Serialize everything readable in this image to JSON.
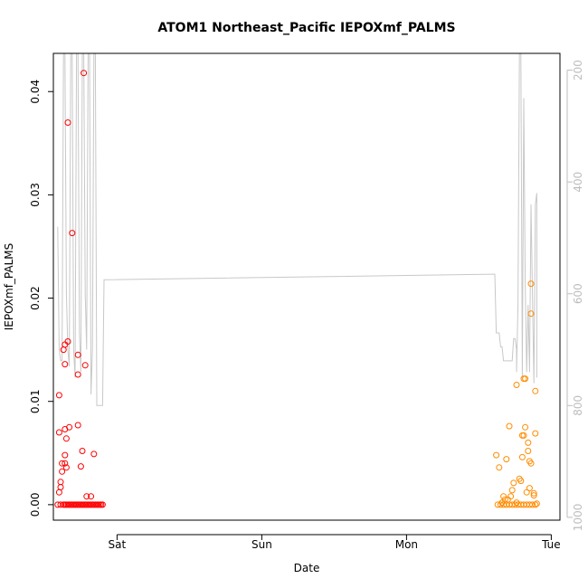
{
  "chart_data": {
    "type": "scatter",
    "title": "ATOM1 Northeast_Pacific IEPOXmf_PALMS",
    "xlabel": "Date",
    "ylabel": "IEPOXmf_PALMS",
    "x_ticks": [
      {
        "label": "Sat",
        "value": 1.0
      },
      {
        "label": "Sun",
        "value": 2.0
      },
      {
        "label": "Mon",
        "value": 3.0
      },
      {
        "label": "Tue",
        "value": 4.0
      }
    ],
    "xlim": [
      0.56,
      4.06
    ],
    "ylim": [
      -0.0015,
      0.0437
    ],
    "y_ticks": [
      0.0,
      0.01,
      0.02,
      0.03,
      0.04
    ],
    "y_tick_labels": [
      "0.00",
      "0.01",
      "0.02",
      "0.03",
      "0.04"
    ],
    "y2_ticks": [
      200,
      400,
      600,
      800,
      1000
    ],
    "y2_tick_labels": [
      "200",
      "400",
      "600",
      "800",
      "1000"
    ],
    "y2_range": [
      1005,
      170
    ],
    "colors": {
      "flight1": "#ff0000",
      "flight2": "#ff8c00",
      "pressure": "#c8c8c8"
    },
    "series": [
      {
        "points": [
          [
            0.6,
            0.0106
          ],
          [
            0.6,
            0.007
          ],
          [
            0.6,
            0.0012
          ],
          [
            0.61,
            0.0017
          ],
          [
            0.61,
            0.0022
          ],
          [
            0.62,
            0.0032
          ],
          [
            0.62,
            0.004
          ],
          [
            0.63,
            0.015
          ],
          [
            0.64,
            0.0155
          ],
          [
            0.64,
            0.0136
          ],
          [
            0.64,
            0.0073
          ],
          [
            0.64,
            0.0048
          ],
          [
            0.64,
            0.004
          ],
          [
            0.65,
            0.0064
          ],
          [
            0.65,
            0.0036
          ],
          [
            0.66,
            0.037
          ],
          [
            0.66,
            0.0158
          ],
          [
            0.67,
            0.0075
          ],
          [
            0.69,
            0.0263
          ],
          [
            0.73,
            0.0145
          ],
          [
            0.73,
            0.0126
          ],
          [
            0.73,
            0.0077
          ],
          [
            0.75,
            0.0037
          ],
          [
            0.76,
            0.0052
          ],
          [
            0.77,
            0.0418
          ],
          [
            0.78,
            0.0135
          ],
          [
            0.79,
            0.0008
          ],
          [
            0.82,
            0.0008
          ],
          [
            0.84,
            0.0049
          ],
          [
            0.59,
            0.0
          ],
          [
            0.61,
            0.0
          ],
          [
            0.63,
            0.0
          ],
          [
            0.64,
            0.0
          ],
          [
            0.65,
            0.0
          ],
          [
            0.66,
            0.0
          ],
          [
            0.67,
            0.0
          ],
          [
            0.68,
            0.0
          ],
          [
            0.69,
            0.0
          ],
          [
            0.7,
            0.0
          ],
          [
            0.71,
            0.0
          ],
          [
            0.72,
            0.0
          ],
          [
            0.73,
            0.0
          ],
          [
            0.74,
            0.0
          ],
          [
            0.75,
            0.0
          ],
          [
            0.76,
            0.0
          ],
          [
            0.77,
            0.0
          ],
          [
            0.78,
            0.0
          ],
          [
            0.79,
            0.0
          ],
          [
            0.8,
            0.0
          ],
          [
            0.81,
            0.0
          ],
          [
            0.82,
            0.0
          ],
          [
            0.83,
            0.0
          ],
          [
            0.84,
            0.0
          ],
          [
            0.85,
            0.0
          ],
          [
            0.86,
            0.0
          ],
          [
            0.87,
            0.0
          ],
          [
            0.88,
            0.0
          ],
          [
            0.89,
            0.0
          ],
          [
            0.9,
            0.0
          ]
        ]
      },
      {
        "points": [
          [
            3.62,
            0.0048
          ],
          [
            3.64,
            0.0036
          ],
          [
            3.69,
            0.0044
          ],
          [
            3.71,
            0.0076
          ],
          [
            3.73,
            0.0014
          ],
          [
            3.74,
            0.0021
          ],
          [
            3.76,
            0.0116
          ],
          [
            3.76,
            0.0002
          ],
          [
            3.78,
            0.0025
          ],
          [
            3.79,
            0.0023
          ],
          [
            3.8,
            0.0046
          ],
          [
            3.8,
            0.0067
          ],
          [
            3.81,
            0.0067
          ],
          [
            3.81,
            0.0122
          ],
          [
            3.82,
            0.0122
          ],
          [
            3.82,
            0.0075
          ],
          [
            3.83,
            0.0012
          ],
          [
            3.84,
            0.006
          ],
          [
            3.84,
            0.0052
          ],
          [
            3.85,
            0.0042
          ],
          [
            3.85,
            0.0016
          ],
          [
            3.86,
            0.004
          ],
          [
            3.86,
            0.0185
          ],
          [
            3.86,
            0.0214
          ],
          [
            3.88,
            0.0011
          ],
          [
            3.88,
            0.0009
          ],
          [
            3.89,
            0.011
          ],
          [
            3.89,
            0.0069
          ],
          [
            3.9,
            0.0001
          ],
          [
            3.66,
            0.0002
          ],
          [
            3.67,
            0.0008
          ],
          [
            3.68,
            0.0005
          ],
          [
            3.7,
            0.0005
          ],
          [
            3.72,
            0.0008
          ],
          [
            3.63,
            0.0
          ],
          [
            3.65,
            0.0
          ],
          [
            3.67,
            0.0
          ],
          [
            3.69,
            0.0
          ],
          [
            3.71,
            0.0
          ],
          [
            3.73,
            0.0
          ],
          [
            3.75,
            0.0
          ],
          [
            3.77,
            0.0
          ],
          [
            3.79,
            0.0
          ],
          [
            3.81,
            0.0
          ],
          [
            3.83,
            0.0
          ],
          [
            3.85,
            0.0
          ],
          [
            3.87,
            0.0
          ],
          [
            3.89,
            0.0
          ]
        ]
      }
    ],
    "y2_series": {
      "points": [
        [
          0.59,
          480
        ],
        [
          0.6,
          700
        ],
        [
          0.61,
          720
        ],
        [
          0.62,
          720
        ],
        [
          0.63,
          170
        ],
        [
          0.64,
          170
        ],
        [
          0.65,
          600
        ],
        [
          0.66,
          700
        ],
        [
          0.67,
          730
        ],
        [
          0.68,
          170
        ],
        [
          0.69,
          170
        ],
        [
          0.7,
          700
        ],
        [
          0.71,
          750
        ],
        [
          0.72,
          170
        ],
        [
          0.73,
          170
        ],
        [
          0.74,
          670
        ],
        [
          0.75,
          740
        ],
        [
          0.76,
          170
        ],
        [
          0.77,
          170
        ],
        [
          0.78,
          600
        ],
        [
          0.79,
          700
        ],
        [
          0.8,
          170
        ],
        [
          0.81,
          170
        ],
        [
          0.82,
          780
        ],
        [
          0.83,
          700
        ],
        [
          0.84,
          170
        ],
        [
          0.85,
          170
        ],
        [
          0.86,
          800
        ],
        [
          0.87,
          800
        ],
        [
          0.88,
          800
        ],
        [
          0.89,
          800
        ],
        [
          0.9,
          800
        ],
        [
          0.91,
          575
        ],
        [
          3.6,
          565
        ],
        [
          3.61,
          565
        ],
        [
          3.62,
          670
        ],
        [
          3.63,
          670
        ],
        [
          3.64,
          670
        ],
        [
          3.65,
          695
        ],
        [
          3.66,
          695
        ],
        [
          3.67,
          720
        ],
        [
          3.68,
          720
        ],
        [
          3.69,
          720
        ],
        [
          3.7,
          720
        ],
        [
          3.71,
          720
        ],
        [
          3.72,
          720
        ],
        [
          3.73,
          720
        ],
        [
          3.74,
          680
        ],
        [
          3.75,
          680
        ],
        [
          3.76,
          700
        ],
        [
          3.76,
          740
        ],
        [
          3.77,
          620
        ],
        [
          3.78,
          170
        ],
        [
          3.79,
          170
        ],
        [
          3.8,
          750
        ],
        [
          3.81,
          250
        ],
        [
          3.82,
          580
        ],
        [
          3.83,
          740
        ],
        [
          3.84,
          620
        ],
        [
          3.85,
          740
        ],
        [
          3.86,
          440
        ],
        [
          3.87,
          600
        ],
        [
          3.88,
          760
        ],
        [
          3.89,
          440
        ],
        [
          3.9,
          420
        ],
        [
          3.9,
          750
        ]
      ]
    }
  }
}
